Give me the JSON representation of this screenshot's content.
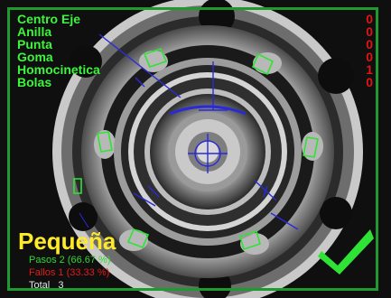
{
  "labels": [
    "Centro Eje",
    "Anilla",
    "Punta",
    "Goma",
    "Homocinetica",
    "Bolas"
  ],
  "counters": [
    "0",
    "0",
    "0",
    "0",
    "1",
    "0"
  ],
  "model": "Pequeña",
  "stats": {
    "pass": "Pasos 2 (66.67 %)",
    "fail": "Fallos 1 (33.33 %)",
    "total_label": "Total",
    "total_value": "3"
  },
  "result_icon": "checkmark-icon",
  "colors": {
    "label": "#3df53d",
    "counter": "#e21414",
    "model": "#ffea2a",
    "pass": "#2fd92f",
    "fail": "#e51a1a",
    "check": "#2fe336",
    "overlay_blue": "#2a2ad8"
  }
}
